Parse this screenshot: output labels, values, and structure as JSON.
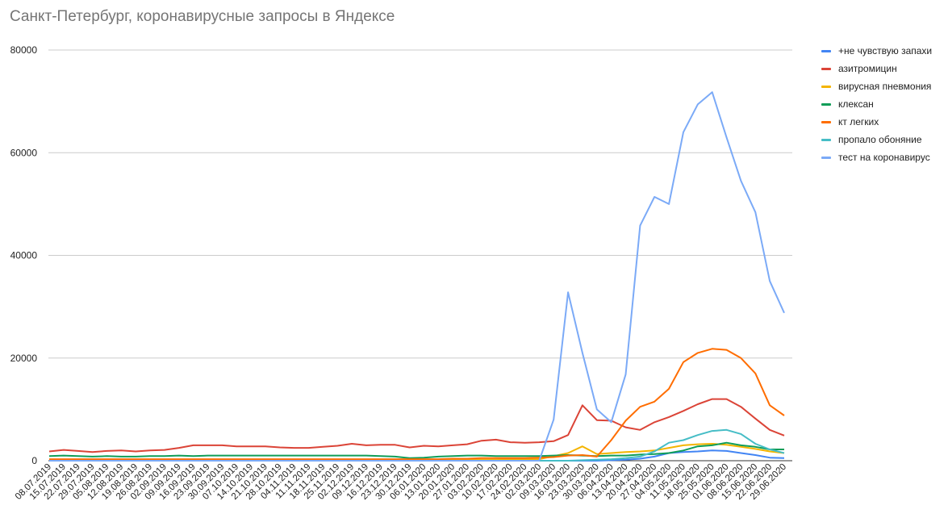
{
  "chart_data": {
    "type": "line",
    "title": "Санкт-Петербург, коронавирусные запросы в Яндексе",
    "xlabel": "",
    "ylabel": "",
    "ylim": [
      0,
      80000
    ],
    "yticks": [
      0,
      20000,
      40000,
      60000,
      80000
    ],
    "grid": true,
    "legend_position": "right",
    "x": [
      "08.07.2019",
      "15.07.2019",
      "22.07.2019",
      "29.07.2019",
      "05.08.2019",
      "12.08.2019",
      "19.08.2019",
      "26.08.2019",
      "02.09.2019",
      "09.09.2019",
      "16.09.2019",
      "23.09.2019",
      "30.09.2019",
      "07.10.2019",
      "14.10.2019",
      "21.10.2019",
      "28.10.2019",
      "04.11.2019",
      "11.11.2019",
      "18.11.2019",
      "25.11.2019",
      "02.12.2019",
      "09.12.2019",
      "16.12.2019",
      "23.12.2019",
      "30.12.2019",
      "06.01.2020",
      "13.01.2020",
      "20.01.2020",
      "27.01.2020",
      "03.02.2020",
      "10.02.2020",
      "17.02.2020",
      "24.02.2020",
      "02.03.2020",
      "09.03.2020",
      "16.03.2020",
      "23.03.2020",
      "30.03.2020",
      "06.04.2020",
      "13.04.2020",
      "20.04.2020",
      "27.04.2020",
      "04.05.2020",
      "11.05.2020",
      "18.05.2020",
      "25.05.2020",
      "01.06.2020",
      "08.06.2020",
      "15.06.2020",
      "22.06.2020",
      "29.06.2020"
    ],
    "series": [
      {
        "name": "+не чувствую запахи",
        "color": "#4285f4",
        "values": [
          0,
          0,
          0,
          0,
          0,
          0,
          0,
          0,
          0,
          0,
          0,
          0,
          0,
          0,
          0,
          0,
          0,
          0,
          0,
          0,
          0,
          0,
          0,
          0,
          0,
          0,
          0,
          0,
          0,
          0,
          0,
          0,
          0,
          0,
          0,
          0,
          0,
          0,
          0,
          100,
          200,
          400,
          800,
          1500,
          1700,
          1800,
          2000,
          1900,
          1500,
          1100,
          600,
          500
        ]
      },
      {
        "name": "азитромицин",
        "color": "#db4437",
        "values": [
          1800,
          2100,
          1900,
          1700,
          1900,
          2000,
          1800,
          2000,
          2100,
          2500,
          3000,
          3000,
          3000,
          2800,
          2800,
          2800,
          2600,
          2500,
          2500,
          2700,
          2900,
          3300,
          3000,
          3100,
          3100,
          2600,
          2900,
          2800,
          3000,
          3200,
          3900,
          4100,
          3600,
          3500,
          3600,
          3800,
          5000,
          10800,
          7900,
          7800,
          6500,
          6000,
          7500,
          8500,
          9700,
          11000,
          12000,
          12000,
          10500,
          8200,
          6000,
          4900
        ]
      },
      {
        "name": "вирусная пневмония",
        "color": "#f4b400",
        "values": [
          0,
          0,
          0,
          0,
          0,
          0,
          0,
          0,
          0,
          0,
          0,
          0,
          0,
          0,
          0,
          0,
          0,
          0,
          0,
          0,
          0,
          0,
          0,
          0,
          0,
          0,
          0,
          100,
          100,
          200,
          200,
          200,
          300,
          300,
          300,
          900,
          1500,
          2800,
          1300,
          1500,
          1700,
          1800,
          2000,
          2500,
          3000,
          3200,
          3300,
          3100,
          2700,
          2300,
          1800,
          1500
        ]
      },
      {
        "name": "клексан",
        "color": "#0f9d58",
        "values": [
          900,
          1000,
          900,
          800,
          900,
          800,
          800,
          900,
          900,
          1000,
          900,
          1000,
          1000,
          1000,
          1000,
          1000,
          1000,
          1000,
          1000,
          1000,
          1000,
          1000,
          1000,
          900,
          800,
          500,
          600,
          800,
          900,
          1000,
          1000,
          900,
          900,
          900,
          900,
          1000,
          1100,
          1000,
          900,
          1000,
          1000,
          1200,
          1300,
          1500,
          2000,
          2800,
          3000,
          3500,
          3000,
          2700,
          2200,
          2200
        ]
      },
      {
        "name": "кт легких",
        "color": "#ff6d00",
        "values": [
          300,
          300,
          300,
          300,
          300,
          300,
          300,
          300,
          300,
          300,
          300,
          300,
          300,
          300,
          300,
          300,
          300,
          300,
          300,
          300,
          300,
          300,
          300,
          300,
          300,
          300,
          300,
          300,
          400,
          400,
          500,
          500,
          500,
          500,
          600,
          700,
          1000,
          1100,
          800,
          4000,
          7800,
          10500,
          11500,
          14000,
          19200,
          21000,
          21800,
          21600,
          20000,
          17000,
          10800,
          8800
        ]
      },
      {
        "name": "пропало обоняние",
        "color": "#46bdc6",
        "values": [
          0,
          0,
          0,
          0,
          0,
          0,
          0,
          0,
          0,
          0,
          0,
          0,
          0,
          0,
          0,
          0,
          0,
          0,
          0,
          0,
          0,
          0,
          0,
          0,
          0,
          0,
          0,
          0,
          0,
          0,
          0,
          0,
          0,
          0,
          0,
          0,
          0,
          100,
          200,
          300,
          500,
          800,
          1800,
          3500,
          4000,
          5000,
          5800,
          6000,
          5200,
          3300,
          2200,
          1500
        ]
      },
      {
        "name": "тест на коронавирус",
        "color": "#7baaf7",
        "values": [
          0,
          0,
          0,
          0,
          0,
          0,
          0,
          0,
          0,
          0,
          0,
          0,
          0,
          0,
          0,
          0,
          0,
          0,
          0,
          0,
          0,
          0,
          0,
          0,
          0,
          0,
          0,
          0,
          0,
          0,
          0,
          0,
          0,
          0,
          0,
          8000,
          32800,
          21000,
          10000,
          7500,
          16800,
          45800,
          51400,
          50000,
          64000,
          69400,
          71800,
          63000,
          54500,
          48400,
          35000,
          28800
        ]
      }
    ]
  }
}
